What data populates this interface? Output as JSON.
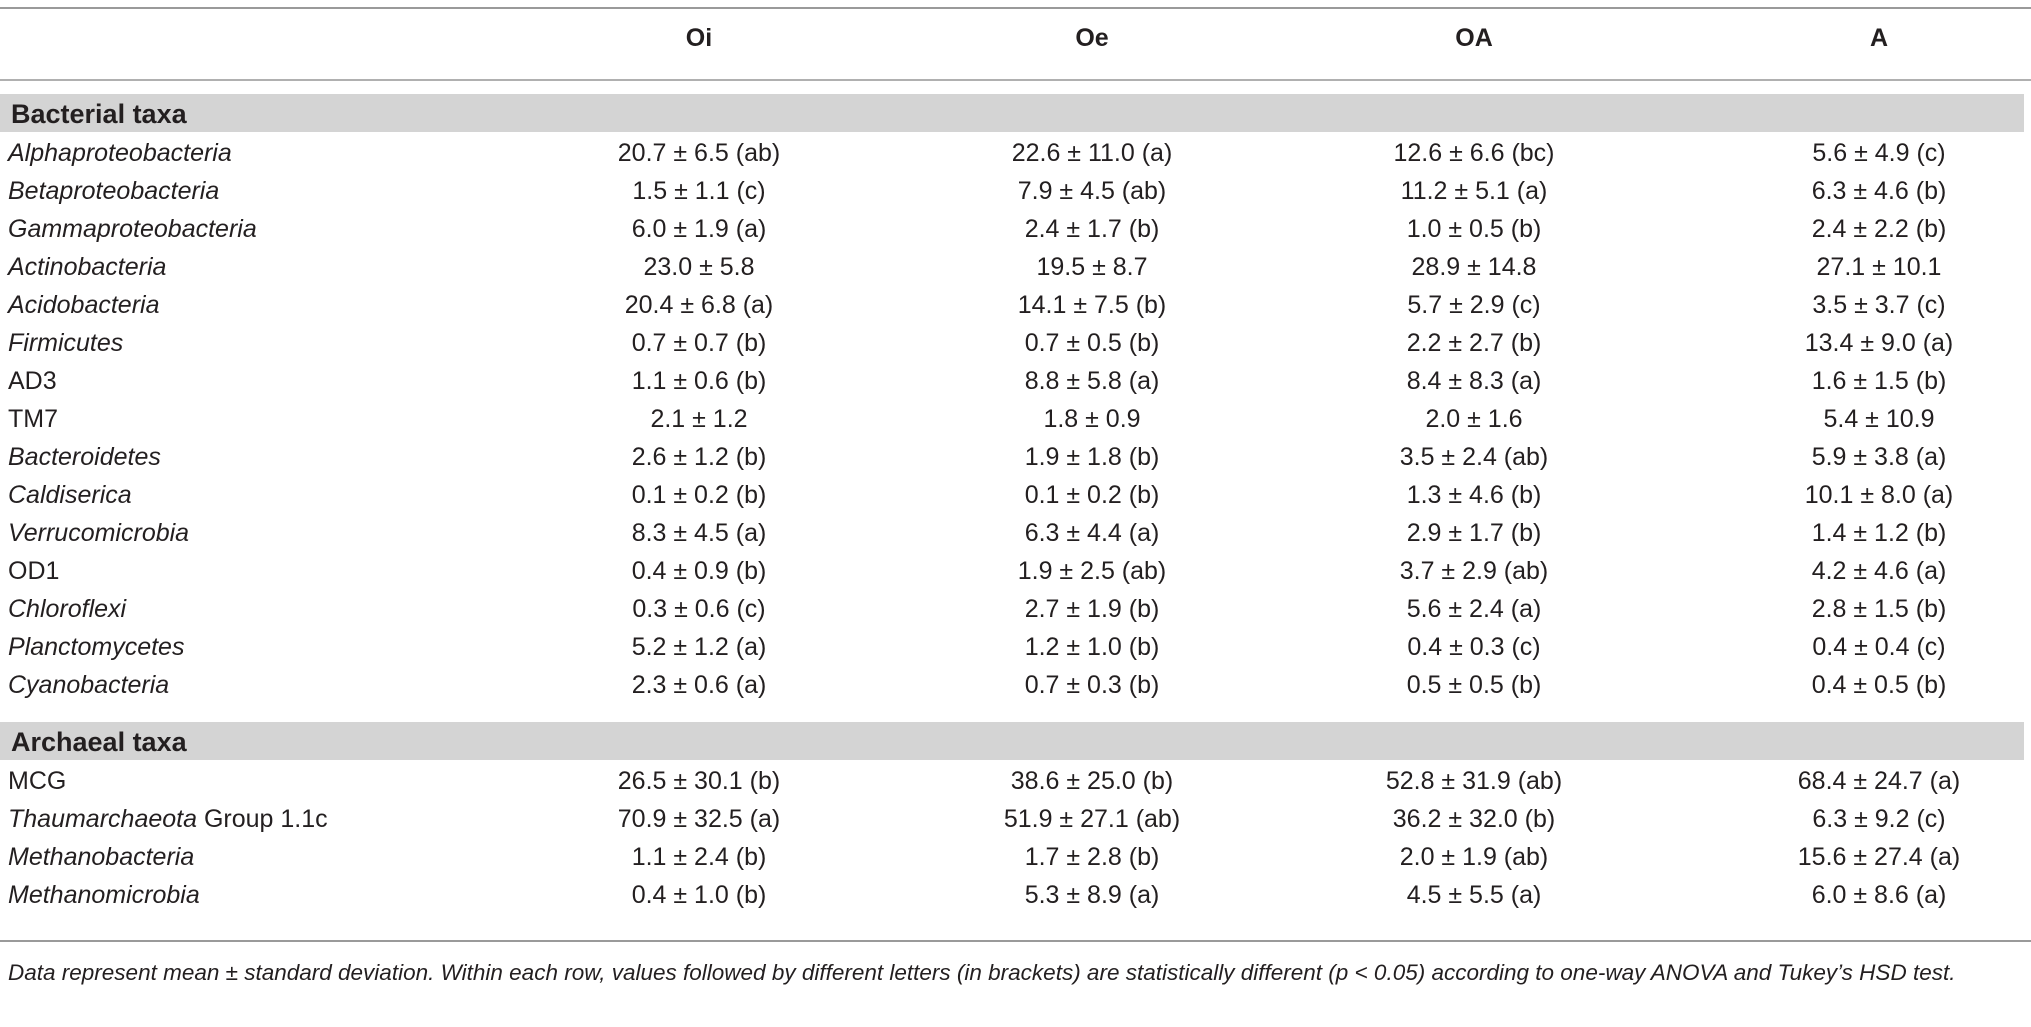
{
  "headers": [
    "Oi",
    "Oe",
    "OA",
    "A"
  ],
  "sections": [
    {
      "title": "Bacterial taxa",
      "rows": [
        {
          "italic": "Alphaproteobacteria",
          "plain": "",
          "values": [
            "20.7 ± 6.5 (ab)",
            "22.6 ± 11.0 (a)",
            "12.6 ± 6.6 (bc)",
            "5.6 ± 4.9 (c)"
          ]
        },
        {
          "italic": "Betaproteobacteria",
          "plain": "",
          "values": [
            "1.5 ± 1.1 (c)",
            "7.9 ± 4.5 (ab)",
            "11.2 ± 5.1 (a)",
            "6.3 ± 4.6 (b)"
          ]
        },
        {
          "italic": "Gammaproteobacteria",
          "plain": "",
          "values": [
            "6.0 ± 1.9 (a)",
            "2.4 ± 1.7 (b)",
            "1.0 ± 0.5 (b)",
            "2.4 ± 2.2 (b)"
          ]
        },
        {
          "italic": "Actinobacteria",
          "plain": "",
          "values": [
            "23.0 ± 5.8",
            "19.5 ± 8.7",
            "28.9 ± 14.8",
            "27.1 ± 10.1"
          ]
        },
        {
          "italic": "Acidobacteria",
          "plain": "",
          "values": [
            "20.4 ± 6.8 (a)",
            "14.1 ± 7.5 (b)",
            "5.7 ± 2.9 (c)",
            "3.5 ± 3.7 (c)"
          ]
        },
        {
          "italic": "Firmicutes",
          "plain": "",
          "values": [
            "0.7 ± 0.7 (b)",
            "0.7 ± 0.5 (b)",
            "2.2 ± 2.7 (b)",
            "13.4 ± 9.0 (a)"
          ]
        },
        {
          "italic": "",
          "plain": "AD3",
          "values": [
            "1.1 ± 0.6 (b)",
            "8.8 ± 5.8 (a)",
            "8.4 ± 8.3 (a)",
            "1.6 ± 1.5 (b)"
          ]
        },
        {
          "italic": "",
          "plain": "TM7",
          "values": [
            "2.1 ± 1.2",
            "1.8 ± 0.9",
            "2.0 ± 1.6",
            "5.4 ± 10.9"
          ]
        },
        {
          "italic": "Bacteroidetes",
          "plain": "",
          "values": [
            "2.6 ± 1.2 (b)",
            "1.9 ± 1.8 (b)",
            "3.5 ± 2.4 (ab)",
            "5.9 ± 3.8 (a)"
          ]
        },
        {
          "italic": "Caldiserica",
          "plain": "",
          "values": [
            "0.1 ± 0.2 (b)",
            "0.1 ± 0.2 (b)",
            "1.3 ± 4.6 (b)",
            "10.1 ± 8.0 (a)"
          ]
        },
        {
          "italic": "Verrucomicrobia",
          "plain": "",
          "values": [
            "8.3 ± 4.5 (a)",
            "6.3 ± 4.4 (a)",
            "2.9 ± 1.7 (b)",
            "1.4 ± 1.2 (b)"
          ]
        },
        {
          "italic": "",
          "plain": "OD1",
          "values": [
            "0.4 ± 0.9 (b)",
            "1.9 ± 2.5 (ab)",
            "3.7 ± 2.9 (ab)",
            "4.2 ± 4.6 (a)"
          ]
        },
        {
          "italic": "Chloroflexi",
          "plain": "",
          "values": [
            "0.3 ± 0.6 (c)",
            "2.7 ± 1.9 (b)",
            "5.6 ± 2.4 (a)",
            "2.8 ± 1.5 (b)"
          ]
        },
        {
          "italic": "Planctomycetes",
          "plain": "",
          "values": [
            "5.2 ± 1.2 (a)",
            "1.2 ± 1.0 (b)",
            "0.4 ± 0.3 (c)",
            "0.4 ± 0.4 (c)"
          ]
        },
        {
          "italic": "Cyanobacteria",
          "plain": "",
          "values": [
            "2.3 ± 0.6 (a)",
            "0.7 ± 0.3 (b)",
            "0.5 ± 0.5 (b)",
            "0.4 ± 0.5 (b)"
          ]
        }
      ]
    },
    {
      "title": "Archaeal taxa",
      "rows": [
        {
          "italic": "",
          "plain": "MCG",
          "values": [
            "26.5 ± 30.1 (b)",
            "38.6 ± 25.0 (b)",
            "52.8 ± 31.9 (ab)",
            "68.4 ± 24.7 (a)"
          ]
        },
        {
          "italic": "Thaumarchaeota",
          "plain": " Group 1.1c",
          "values": [
            "70.9 ± 32.5 (a)",
            "51.9 ± 27.1 (ab)",
            "36.2 ± 32.0 (b)",
            "6.3 ± 9.2 (c)"
          ]
        },
        {
          "italic": "Methanobacteria",
          "plain": "",
          "values": [
            "1.1 ± 2.4 (b)",
            "1.7 ± 2.8 (b)",
            "2.0 ± 1.9 (ab)",
            "15.6 ± 27.4 (a)"
          ]
        },
        {
          "italic": "Methanomicrobia",
          "plain": "",
          "values": [
            "0.4 ± 1.0 (b)",
            "5.3 ± 8.9 (a)",
            "4.5 ± 5.5 (a)",
            "6.0 ± 8.6 (a)"
          ]
        }
      ]
    }
  ],
  "footnote": "Data represent mean ± standard deviation. Within each row, values followed by different letters (in brackets) are statistically different (p < 0.05) according to one-way ANOVA and Tukey’s HSD test."
}
